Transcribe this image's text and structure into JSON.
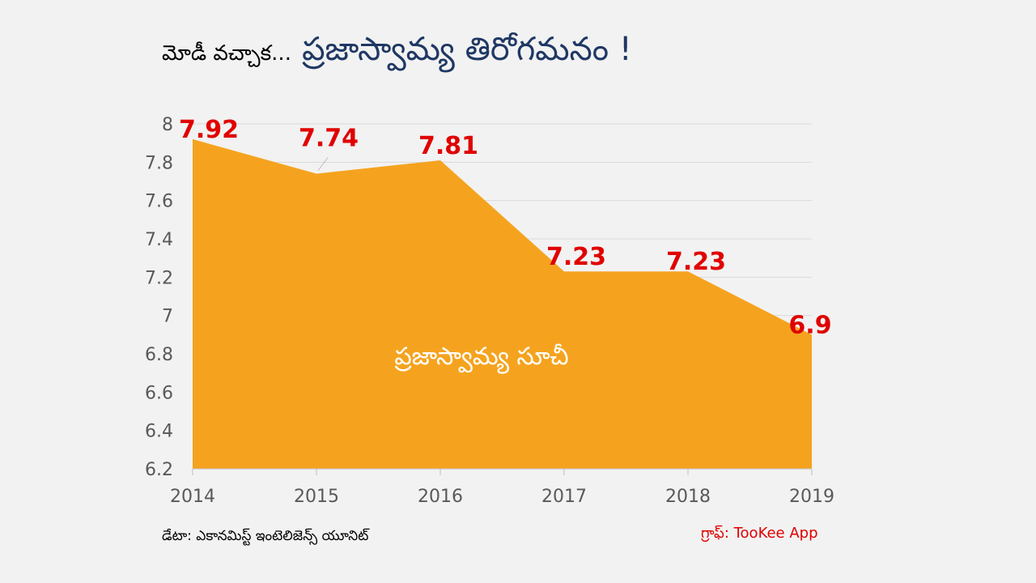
{
  "title": {
    "prefix": "మోడీ వచ్చాక...",
    "main": "ప్రజాస్వామ్య తిరోగమనం !"
  },
  "chart_data": {
    "type": "area",
    "x": [
      "2014",
      "2015",
      "2016",
      "2017",
      "2018",
      "2019"
    ],
    "series": [
      {
        "name": "ప్రజాస్వామ్య సూచీ",
        "values": [
          7.92,
          7.74,
          7.81,
          7.23,
          7.23,
          6.9
        ],
        "labels": [
          "7.92",
          "7.74",
          "7.81",
          "7.23",
          "7.23",
          "6.9"
        ],
        "color": "#f5a31f"
      }
    ],
    "yticks": [
      "8",
      "7.8",
      "7.6",
      "7.4",
      "7.2",
      "7",
      "6.8",
      "6.6",
      "6.4",
      "6.2"
    ],
    "ylim": [
      6.2,
      8
    ],
    "grid": true,
    "label_color": "#e00000"
  },
  "footer": {
    "source": "డేటా: ఎకానమిస్ట్ ఇంటెలిజెన్స్ యూనిట్",
    "credit": "గ్రాఫ్: TooKee App"
  }
}
